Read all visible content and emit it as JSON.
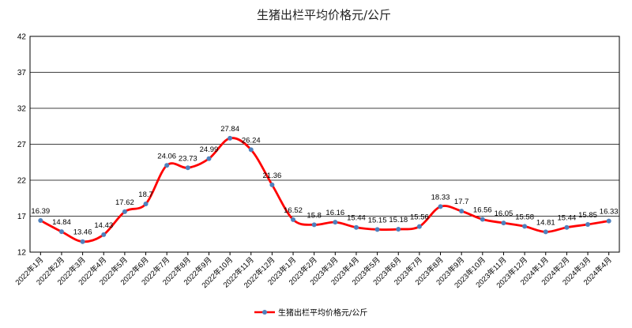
{
  "chart_data": {
    "type": "line",
    "title": "生猪出栏平均价格元/公斤",
    "xlabel": "",
    "ylabel": "",
    "ylim": [
      12,
      42
    ],
    "yticks": [
      12,
      17,
      22,
      27,
      32,
      37,
      42
    ],
    "grid": true,
    "legend_position": "bottom",
    "categories": [
      "2022年1月",
      "2022年2月",
      "2022年3月",
      "2022年4月",
      "2022年5月",
      "2022年6月",
      "2022年7月",
      "2022年8月",
      "2022年9月",
      "2022年10月",
      "2022年11月",
      "2022年12月",
      "2023年1月",
      "2023年2月",
      "2023年3月",
      "2023年4月",
      "2023年5月",
      "2023年6月",
      "2023年7月",
      "2023年8月",
      "2023年9月",
      "2023年10月",
      "2023年11月",
      "2023年12月",
      "2024年1月",
      "2024年2月",
      "2024年3月",
      "2024年4月"
    ],
    "series": [
      {
        "name": "生猪出栏平均价格元/公斤",
        "line_color": "#ff0000",
        "marker_color": "#4f81bd",
        "values": [
          16.39,
          14.84,
          13.46,
          14.43,
          17.62,
          18.7,
          24.06,
          23.73,
          24.99,
          27.84,
          26.24,
          21.36,
          16.52,
          15.8,
          16.16,
          15.44,
          15.15,
          15.18,
          15.56,
          18.33,
          17.7,
          16.56,
          16.05,
          15.58,
          14.81,
          15.44,
          15.85,
          16.33
        ],
        "labels": [
          "16.39",
          "14.84",
          "13.46",
          "14.43",
          "17.62",
          "18.7",
          "24.06",
          "23.73",
          "24.99",
          "27.84",
          "26.24",
          "21.36",
          "16.52",
          "15.8",
          "16.16",
          "15.44",
          "15.15",
          "15.18",
          "15.56",
          "18.33",
          "17.7",
          "16.56",
          "16.05",
          "15.58",
          "14.81",
          "15.44",
          "15.85",
          "16.33"
        ]
      }
    ]
  }
}
